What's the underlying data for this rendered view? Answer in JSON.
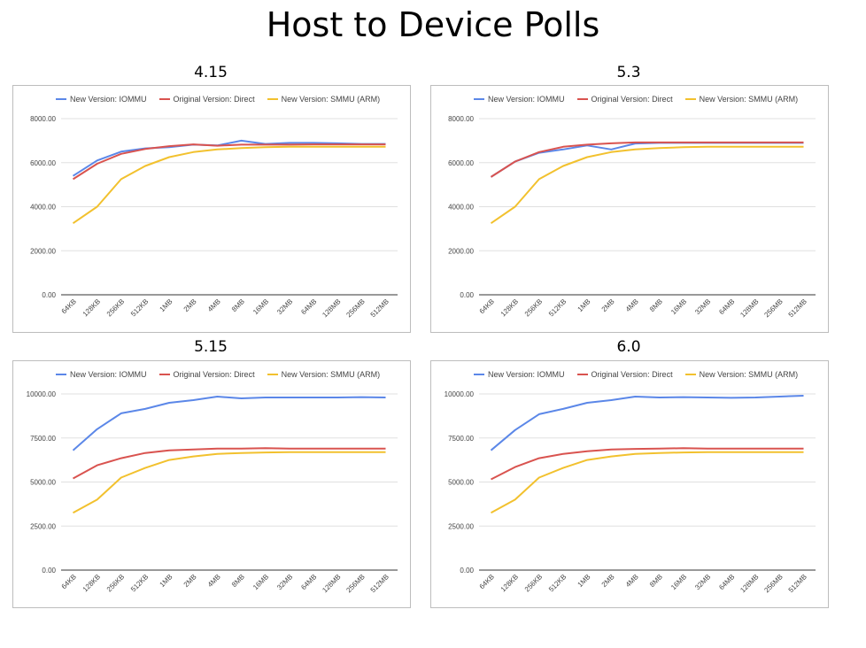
{
  "title": "Host to Device Polls",
  "colors": {
    "iommu": "#5b87e8",
    "direct": "#d9534f",
    "smmu": "#f2c12e"
  },
  "legend": {
    "iommu": "New Version: IOMMU",
    "direct": "Original Version: Direct",
    "smmu": "New Version: SMMU (ARM)"
  },
  "chart_data": [
    {
      "type": "line",
      "title": "4.15",
      "categories": [
        "64KB",
        "128KB",
        "256KB",
        "512KB",
        "1MB",
        "2MB",
        "4MB",
        "8MB",
        "16MB",
        "32MB",
        "64MB",
        "128MB",
        "256MB",
        "512MB"
      ],
      "ylim": [
        0,
        8000
      ],
      "yticks": [
        "0.00",
        "2000.00",
        "4000.00",
        "6000.00",
        "8000.00"
      ],
      "grid": true,
      "legend_position": "top",
      "series": [
        {
          "name": "New Version: IOMMU",
          "key": "iommu",
          "values": [
            5400,
            6100,
            6500,
            6650,
            6700,
            6820,
            6780,
            7000,
            6850,
            6900,
            6900,
            6880,
            6850,
            6850
          ]
        },
        {
          "name": "Original Version: Direct",
          "key": "direct",
          "values": [
            5250,
            5950,
            6400,
            6620,
            6750,
            6830,
            6770,
            6820,
            6820,
            6820,
            6830,
            6830,
            6830,
            6830
          ]
        },
        {
          "name": "New Version: SMMU (ARM)",
          "key": "smmu",
          "values": [
            3250,
            4000,
            5250,
            5850,
            6250,
            6480,
            6600,
            6660,
            6700,
            6720,
            6720,
            6720,
            6720,
            6720
          ]
        }
      ]
    },
    {
      "type": "line",
      "title": "5.3",
      "categories": [
        "64KB",
        "128KB",
        "256KB",
        "512KB",
        "1MB",
        "2MB",
        "4MB",
        "8MB",
        "16MB",
        "32MB",
        "64MB",
        "128MB",
        "256MB",
        "512MB"
      ],
      "ylim": [
        0,
        8000
      ],
      "yticks": [
        "0.00",
        "2000.00",
        "4000.00",
        "6000.00",
        "8000.00"
      ],
      "grid": true,
      "legend_position": "top",
      "series": [
        {
          "name": "New Version: IOMMU",
          "key": "iommu",
          "values": [
            5350,
            6050,
            6450,
            6600,
            6780,
            6600,
            6870,
            6900,
            6900,
            6900,
            6900,
            6900,
            6900,
            6900
          ]
        },
        {
          "name": "Original Version: Direct",
          "key": "direct",
          "values": [
            5350,
            6050,
            6480,
            6720,
            6820,
            6880,
            6920,
            6920,
            6920,
            6920,
            6920,
            6920,
            6920,
            6920
          ]
        },
        {
          "name": "New Version: SMMU (ARM)",
          "key": "smmu",
          "values": [
            3250,
            4000,
            5250,
            5850,
            6250,
            6480,
            6600,
            6660,
            6700,
            6720,
            6720,
            6720,
            6720,
            6720
          ]
        }
      ]
    },
    {
      "type": "line",
      "title": "5.15",
      "categories": [
        "64KB",
        "128KB",
        "256KB",
        "512KB",
        "1MB",
        "2MB",
        "4MB",
        "8MB",
        "16MB",
        "32MB",
        "64MB",
        "128MB",
        "256MB",
        "512MB"
      ],
      "ylim": [
        0,
        10000
      ],
      "yticks": [
        "0.00",
        "2500.00",
        "5000.00",
        "7500.00",
        "10000.00"
      ],
      "grid": true,
      "legend_position": "top",
      "series": [
        {
          "name": "New Version: IOMMU",
          "key": "iommu",
          "values": [
            6800,
            8000,
            8900,
            9150,
            9500,
            9650,
            9850,
            9750,
            9800,
            9800,
            9800,
            9800,
            9820,
            9800
          ]
        },
        {
          "name": "Original Version: Direct",
          "key": "direct",
          "values": [
            5200,
            5950,
            6350,
            6650,
            6800,
            6850,
            6900,
            6900,
            6920,
            6900,
            6900,
            6900,
            6900,
            6900
          ]
        },
        {
          "name": "New Version: SMMU (ARM)",
          "key": "smmu",
          "values": [
            3250,
            4000,
            5250,
            5800,
            6250,
            6450,
            6600,
            6650,
            6680,
            6700,
            6700,
            6700,
            6700,
            6700
          ]
        }
      ]
    },
    {
      "type": "line",
      "title": "6.0",
      "categories": [
        "64KB",
        "128KB",
        "256KB",
        "512KB",
        "1MB",
        "2MB",
        "4MB",
        "8MB",
        "16MB",
        "32MB",
        "64MB",
        "128MB",
        "256MB",
        "512MB"
      ],
      "ylim": [
        0,
        10000
      ],
      "yticks": [
        "0.00",
        "2500.00",
        "5000.00",
        "7500.00",
        "10000.00"
      ],
      "grid": true,
      "legend_position": "top",
      "series": [
        {
          "name": "New Version: IOMMU",
          "key": "iommu",
          "values": [
            6800,
            7950,
            8850,
            9150,
            9500,
            9650,
            9850,
            9800,
            9820,
            9800,
            9780,
            9800,
            9850,
            9900
          ]
        },
        {
          "name": "Original Version: Direct",
          "key": "direct",
          "values": [
            5150,
            5850,
            6350,
            6600,
            6750,
            6850,
            6880,
            6900,
            6920,
            6900,
            6900,
            6900,
            6900,
            6900
          ]
        },
        {
          "name": "New Version: SMMU (ARM)",
          "key": "smmu",
          "values": [
            3250,
            4000,
            5250,
            5800,
            6250,
            6450,
            6600,
            6650,
            6680,
            6700,
            6700,
            6700,
            6700,
            6700
          ]
        }
      ]
    }
  ]
}
